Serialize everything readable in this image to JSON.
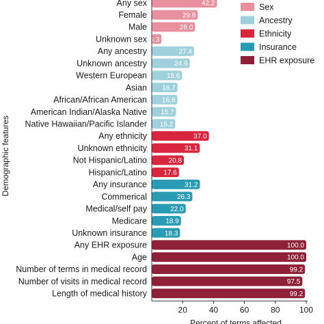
{
  "chart_data": {
    "type": "bar",
    "orientation": "horizontal",
    "xlabel": "Percent of terms affected",
    "ylabel": "Demographic features",
    "xlim": [
      0,
      100
    ],
    "xticks": [
      20,
      40,
      60,
      80,
      100
    ],
    "grid": false,
    "legend_position": "top-right",
    "series": [
      {
        "name": "Sex",
        "color": "#e8909d",
        "categories": [
          "Any sex",
          "Female",
          "Male",
          "Unknown sex"
        ],
        "values": [
          42.2,
          29.8,
          28.0,
          6.3
        ]
      },
      {
        "name": "Ancestry",
        "color": "#9fd0dc",
        "categories": [
          "Any ancestry",
          "Unknown ancestry",
          "Western European",
          "Asian",
          "African/African American",
          "American Indian/Alaska Native",
          "Native Hawaiian/Pacific Islander"
        ],
        "values": [
          27.4,
          24.6,
          19.6,
          16.7,
          16.6,
          15.7,
          15.2
        ]
      },
      {
        "name": "Ethnicity",
        "color": "#d7263d",
        "categories": [
          "Any ethnicity",
          "Unknown ethnicity",
          "Not Hispanic/Latino",
          "Hispanic/Latino"
        ],
        "values": [
          37.0,
          31.1,
          20.8,
          17.6
        ]
      },
      {
        "name": "Insurance",
        "color": "#2a9bb4",
        "categories": [
          "Any insurance",
          "Commerical",
          "Medical/self pay",
          "Medicare",
          "Unknown insurance"
        ],
        "values": [
          31.2,
          26.3,
          22.0,
          18.9,
          18.3
        ]
      },
      {
        "name": "EHR exposure",
        "color": "#8e2038",
        "categories": [
          "Any EHR exposure",
          "Age",
          "Number of terms in medical record",
          "Number of visits in medical record",
          "Length of medical history"
        ],
        "values": [
          100.0,
          100.0,
          99.2,
          97.5,
          99.2
        ]
      }
    ]
  }
}
